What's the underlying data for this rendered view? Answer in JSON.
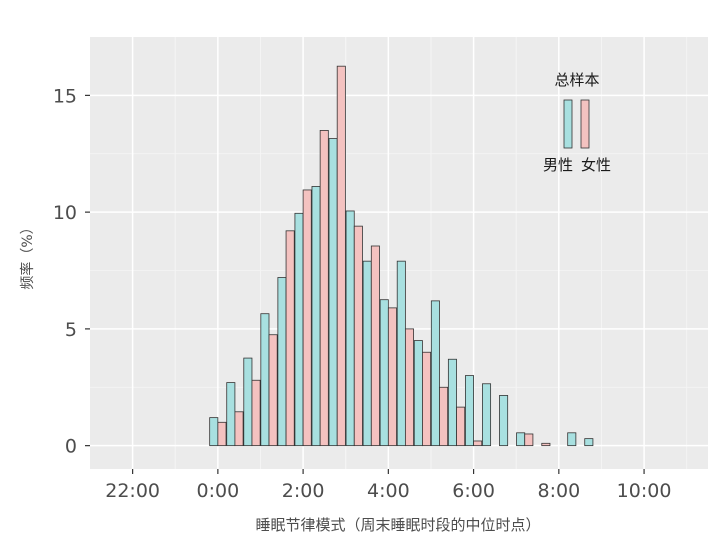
{
  "chart_data": {
    "type": "bar",
    "title": "",
    "xlabel": "睡眠节律模式（周末睡眠时段的中位时点）",
    "ylabel": "频率（%）",
    "x_ticks": [
      "22:00",
      "0:00",
      "2:00",
      "4:00",
      "6:00",
      "8:00",
      "10:00"
    ],
    "x_tick_hours": [
      -2,
      0,
      2,
      4,
      6,
      8,
      10
    ],
    "y_ticks": [
      0,
      5,
      10,
      15
    ],
    "xlim_hours": [
      -3,
      11.5
    ],
    "ylim": [
      -1,
      17.5
    ],
    "grid": true,
    "bin_width_hours": 0.4,
    "categories_hours": [
      0,
      0.4,
      0.8,
      1.2,
      1.6,
      2.0,
      2.4,
      2.8,
      3.2,
      3.6,
      4.0,
      4.4,
      4.8,
      5.2,
      5.6,
      6.0,
      6.4,
      6.8,
      7.2,
      7.6,
      8.0,
      8.4,
      8.8,
      9.2,
      9.6
    ],
    "series": [
      {
        "name": "男性",
        "color": "#a8e0e0",
        "values": [
          1.2,
          2.7,
          3.75,
          5.65,
          7.2,
          9.95,
          11.1,
          13.15,
          10.05,
          7.9,
          6.25,
          7.9,
          4.5,
          6.2,
          3.7,
          3.0,
          2.65,
          2.15,
          0.55,
          0.55,
          0.3
        ]
      },
      {
        "name": "女性",
        "color": "#f4c2c0",
        "values": [
          1.0,
          1.45,
          2.8,
          4.75,
          9.2,
          10.95,
          13.5,
          16.25,
          9.4,
          8.55,
          5.9,
          5.0,
          4.0,
          2.5,
          1.65,
          0.2,
          0.5,
          0.1
        ]
      }
    ],
    "male_offsets_bins": [
      0,
      1,
      2,
      3,
      4,
      5,
      6,
      7,
      8,
      9,
      10,
      11,
      12,
      13,
      14,
      15,
      16,
      17,
      18,
      21,
      22
    ],
    "female_offsets_bins": [
      0,
      1,
      2,
      3,
      4,
      5,
      6,
      7,
      8,
      9,
      10,
      11,
      12,
      13,
      14,
      15,
      18,
      19
    ],
    "legend": {
      "title": "总样本",
      "labels": [
        "男性",
        "女性"
      ],
      "placement": "top-right"
    }
  }
}
